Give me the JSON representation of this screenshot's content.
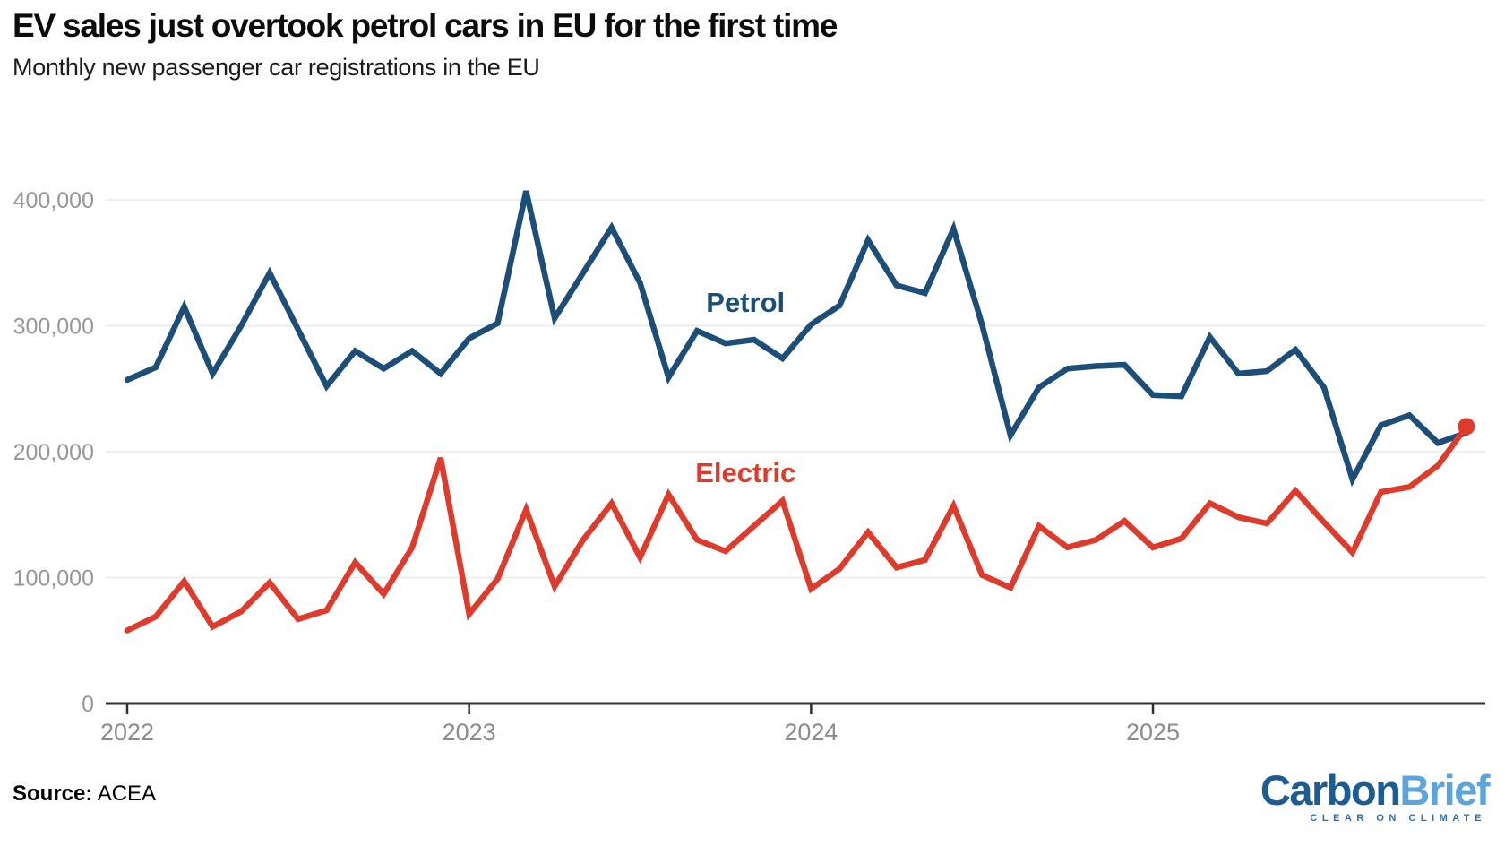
{
  "header": {
    "title": "EV sales just overtook petrol cars in EU for the first time",
    "subtitle": "Monthly new passenger car registrations in the EU"
  },
  "footer": {
    "source_label": "Source:",
    "source_value": " ACEA"
  },
  "logo": {
    "part1": "Carbon",
    "part2": "Brief",
    "tagline": "CLEAR ON CLIMATE",
    "part1_color": "#1d5c92",
    "part2_color": "#5ca5dc",
    "tagline_color": "#2d6ea8"
  },
  "chart_data": {
    "type": "line",
    "title": "EV sales just overtook petrol cars in EU for the first time",
    "subtitle": "Monthly new passenger car registrations in the EU",
    "grid": true,
    "ylim": [
      0,
      430000
    ],
    "ylabel": "",
    "xlabel": "",
    "y_ticks": [
      {
        "label": "400,000",
        "value": 400000
      },
      {
        "label": "300,000",
        "value": 300000
      },
      {
        "label": "200,000",
        "value": 200000
      },
      {
        "label": "100,000",
        "value": 100000
      },
      {
        "label": "0",
        "value": 0
      }
    ],
    "x_ticks": [
      {
        "label": "2022",
        "index": 0
      },
      {
        "label": "2023",
        "index": 12
      },
      {
        "label": "2024",
        "index": 24
      },
      {
        "label": "2025",
        "index": 36
      }
    ],
    "x": [
      "Jan 2022",
      "Feb 2022",
      "Mar 2022",
      "Apr 2022",
      "May 2022",
      "Jun 2022",
      "Jul 2022",
      "Aug 2022",
      "Sep 2022",
      "Oct 2022",
      "Nov 2022",
      "Dec 2022",
      "Jan 2023",
      "Feb 2023",
      "Mar 2023",
      "Apr 2023",
      "May 2023",
      "Jun 2023",
      "Jul 2023",
      "Aug 2023",
      "Sep 2023",
      "Oct 2023",
      "Nov 2023",
      "Dec 2023",
      "Jan 2024",
      "Feb 2024",
      "Mar 2024",
      "Apr 2024",
      "May 2024",
      "Jun 2024",
      "Jul 2024",
      "Aug 2024",
      "Sep 2024",
      "Oct 2024",
      "Nov 2024",
      "Dec 2024",
      "Jan 2025",
      "Feb 2025",
      "Mar 2025",
      "Apr 2025",
      "May 2025",
      "Jun 2025",
      "Jul 2025",
      "Aug 2025",
      "Sep 2025",
      "Oct 2025",
      "Nov 2025",
      "Dec 2025"
    ],
    "series": [
      {
        "name": "Petrol",
        "color": "#1c4e78",
        "label_x_index": 21.7,
        "label_value": 318000,
        "values": [
          257000,
          267000,
          315000,
          262000,
          300000,
          342000,
          297000,
          252000,
          280000,
          266000,
          280000,
          262000,
          290000,
          302000,
          407000,
          306000,
          342000,
          378000,
          334000,
          259000,
          296000,
          286000,
          289000,
          274000,
          301000,
          316000,
          368000,
          332000,
          326000,
          377000,
          301000,
          213000,
          251000,
          266000,
          268000,
          269000,
          245000,
          244000,
          291000,
          262000,
          264000,
          281000,
          251000,
          178000,
          221000,
          229000,
          207000,
          215000
        ]
      },
      {
        "name": "Electric",
        "color": "#de3b2c",
        "label_x_index": 21.7,
        "label_value": 183000,
        "values": [
          58000,
          69000,
          97000,
          61000,
          73000,
          96000,
          67000,
          74000,
          112000,
          87000,
          124000,
          195000,
          71000,
          99000,
          154000,
          93000,
          130000,
          159000,
          116000,
          166000,
          130000,
          121000,
          141000,
          161000,
          91000,
          107000,
          136000,
          108000,
          114000,
          157000,
          102000,
          92000,
          141000,
          124000,
          130000,
          145000,
          124000,
          131000,
          159000,
          148000,
          143000,
          169000,
          144000,
          120000,
          168000,
          172000,
          189000,
          220000
        ]
      }
    ],
    "end_marker": {
      "series": "Electric",
      "color": "#de3b2c",
      "radius": 9.5
    },
    "legend": "inline-labels",
    "axis_color": "#2f2f2f",
    "grid_color": "#e9e9e9",
    "tick_label_color": "#979797"
  }
}
